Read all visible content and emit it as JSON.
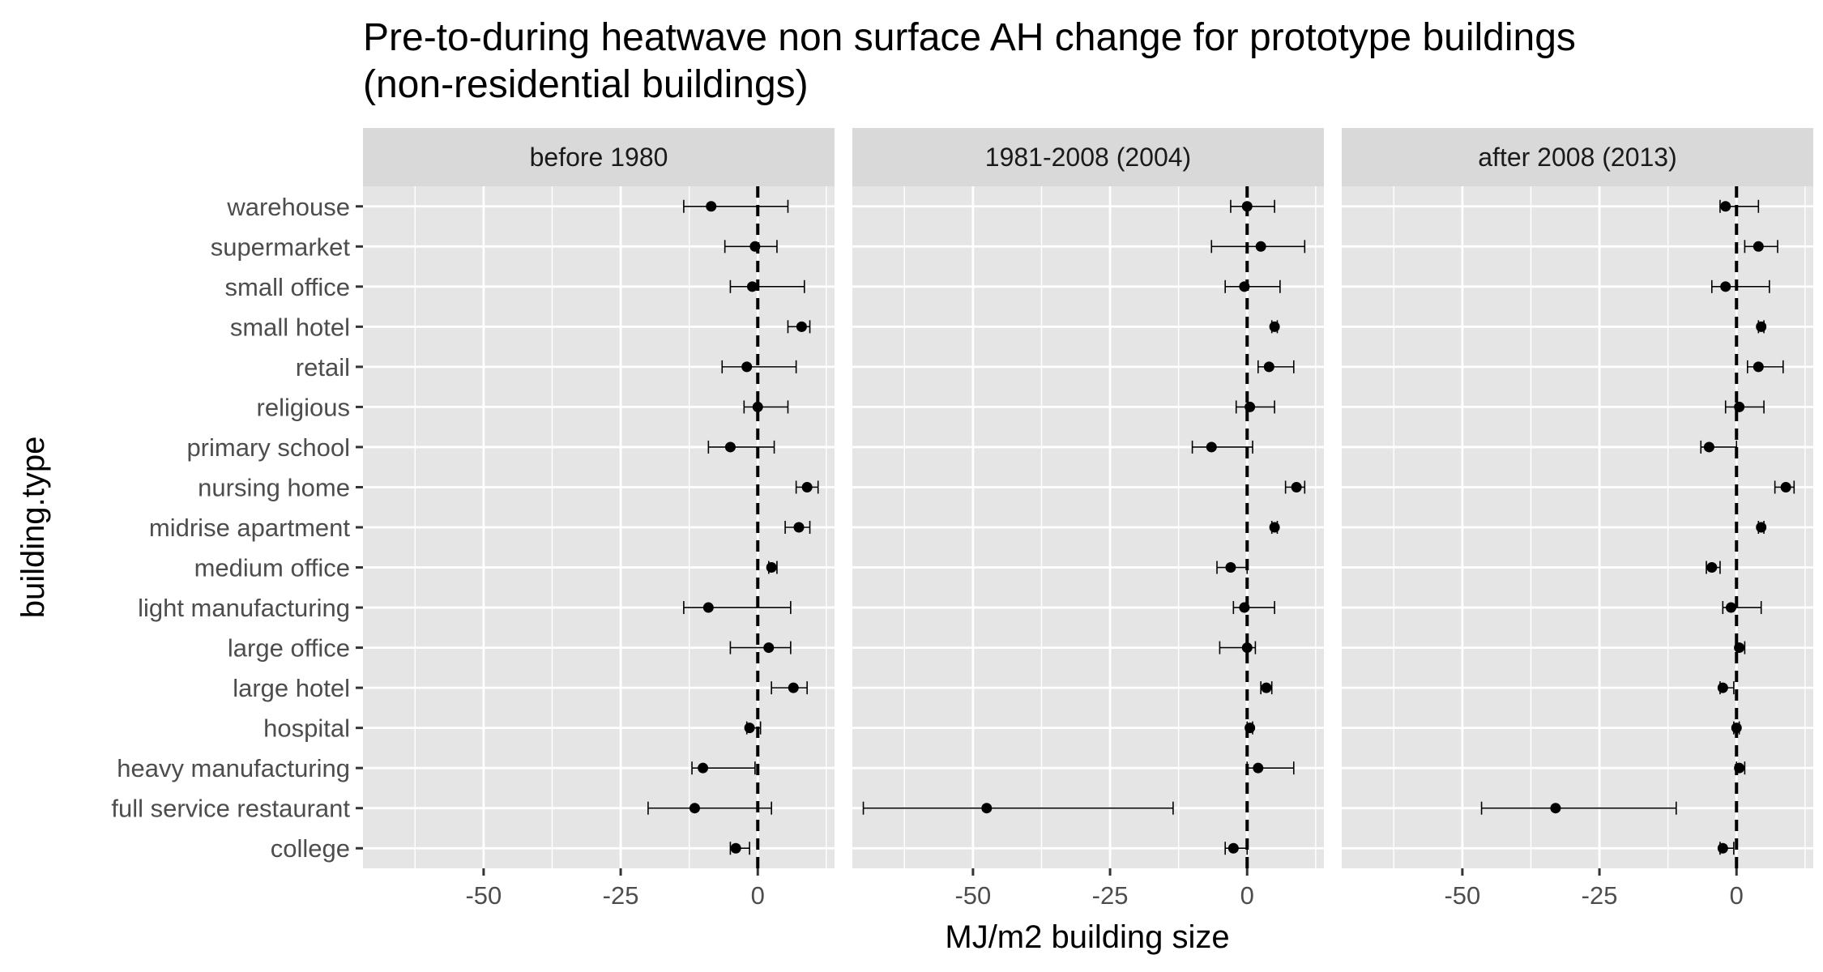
{
  "chart_data": {
    "type": "scatter",
    "subtype": "point-with-horizontal-errorbars, faceted",
    "title": "Pre-to-during heatwave non surface AH change for prototype buildings\n(non-residential buildings)",
    "xlabel": "MJ/m2 building size",
    "ylabel": "building.type",
    "xlim": [
      -72,
      14
    ],
    "x_ticks": [
      -50,
      -25,
      0
    ],
    "x_tick_labels": [
      "-50",
      "-25",
      "0"
    ],
    "reference_line": {
      "x": 0,
      "style": "dashed",
      "color": "#000000"
    },
    "categories": [
      "warehouse",
      "supermarket",
      "small office",
      "small hotel",
      "retail",
      "religious",
      "primary school",
      "nursing home",
      "midrise apartment",
      "medium office",
      "light manufacturing",
      "large office",
      "large hotel",
      "hospital",
      "heavy manufacturing",
      "full service restaurant",
      "college"
    ],
    "colors": {
      "panel_bg": "#e5e5e5",
      "grid": "#ffffff",
      "strip_bg": "#d9d9d9",
      "point": "#000000",
      "tick": "#4d4d4d"
    },
    "grid": true,
    "legend": "none",
    "facets": [
      {
        "label": "before 1980",
        "points": [
          {
            "category": "warehouse",
            "x": -8.5,
            "xmin": -13.5,
            "xmax": 5.5
          },
          {
            "category": "supermarket",
            "x": -0.5,
            "xmin": -6,
            "xmax": 3.5
          },
          {
            "category": "small office",
            "x": -1,
            "xmin": -5,
            "xmax": 8.5
          },
          {
            "category": "small hotel",
            "x": 8,
            "xmin": 5.5,
            "xmax": 9.5
          },
          {
            "category": "retail",
            "x": -2,
            "xmin": -6.5,
            "xmax": 7
          },
          {
            "category": "religious",
            "x": 0,
            "xmin": -2.5,
            "xmax": 5.5
          },
          {
            "category": "primary school",
            "x": -5,
            "xmin": -9,
            "xmax": 3
          },
          {
            "category": "nursing home",
            "x": 9,
            "xmin": 7,
            "xmax": 11
          },
          {
            "category": "midrise apartment",
            "x": 7.5,
            "xmin": 5,
            "xmax": 9.5
          },
          {
            "category": "medium office",
            "x": 2.5,
            "xmin": 2,
            "xmax": 3.5
          },
          {
            "category": "light manufacturing",
            "x": -9,
            "xmin": -13.5,
            "xmax": 6
          },
          {
            "category": "large office",
            "x": 2,
            "xmin": -5,
            "xmax": 6
          },
          {
            "category": "large hotel",
            "x": 6.5,
            "xmin": 2.5,
            "xmax": 9
          },
          {
            "category": "hospital",
            "x": -1.5,
            "xmin": -2,
            "xmax": 0.5
          },
          {
            "category": "heavy manufacturing",
            "x": -10,
            "xmin": -12,
            "xmax": -0.5
          },
          {
            "category": "full service restaurant",
            "x": -11.5,
            "xmin": -20,
            "xmax": 2.5
          },
          {
            "category": "college",
            "x": -4,
            "xmin": -5,
            "xmax": -1.5
          }
        ]
      },
      {
        "label": "1981-2008 (2004)",
        "points": [
          {
            "category": "warehouse",
            "x": 0,
            "xmin": -3,
            "xmax": 5
          },
          {
            "category": "supermarket",
            "x": 2.5,
            "xmin": -6.5,
            "xmax": 10.5
          },
          {
            "category": "small office",
            "x": -0.5,
            "xmin": -4,
            "xmax": 6
          },
          {
            "category": "small hotel",
            "x": 5,
            "xmin": 4.5,
            "xmax": 5.5
          },
          {
            "category": "retail",
            "x": 4,
            "xmin": 2,
            "xmax": 8.5
          },
          {
            "category": "religious",
            "x": 0.5,
            "xmin": -2,
            "xmax": 5
          },
          {
            "category": "primary school",
            "x": -6.5,
            "xmin": -10,
            "xmax": 1
          },
          {
            "category": "nursing home",
            "x": 9,
            "xmin": 7,
            "xmax": 10.5
          },
          {
            "category": "midrise apartment",
            "x": 5,
            "xmin": 4.5,
            "xmax": 5.5
          },
          {
            "category": "medium office",
            "x": -3,
            "xmin": -5.5,
            "xmax": 0
          },
          {
            "category": "light manufacturing",
            "x": -0.5,
            "xmin": -2.5,
            "xmax": 5
          },
          {
            "category": "large office",
            "x": 0,
            "xmin": -5,
            "xmax": 1.5
          },
          {
            "category": "large hotel",
            "x": 3.5,
            "xmin": 2.5,
            "xmax": 4.5
          },
          {
            "category": "hospital",
            "x": 0.5,
            "xmin": 0,
            "xmax": 1
          },
          {
            "category": "heavy manufacturing",
            "x": 2,
            "xmin": 0,
            "xmax": 8.5
          },
          {
            "category": "full service restaurant",
            "x": -47.5,
            "xmin": -70,
            "xmax": -13.5
          },
          {
            "category": "college",
            "x": -2.5,
            "xmin": -4,
            "xmax": 0
          }
        ]
      },
      {
        "label": "after 2008 (2013)",
        "points": [
          {
            "category": "warehouse",
            "x": -2,
            "xmin": -3,
            "xmax": 4
          },
          {
            "category": "supermarket",
            "x": 4,
            "xmin": 1.5,
            "xmax": 7.5
          },
          {
            "category": "small office",
            "x": -2,
            "xmin": -4.5,
            "xmax": 6
          },
          {
            "category": "small hotel",
            "x": 4.5,
            "xmin": 4,
            "xmax": 5
          },
          {
            "category": "retail",
            "x": 4,
            "xmin": 2,
            "xmax": 8.5
          },
          {
            "category": "religious",
            "x": 0.5,
            "xmin": -2,
            "xmax": 5
          },
          {
            "category": "primary school",
            "x": -5,
            "xmin": -6.5,
            "xmax": 0
          },
          {
            "category": "nursing home",
            "x": 9,
            "xmin": 7,
            "xmax": 10.5
          },
          {
            "category": "midrise apartment",
            "x": 4.5,
            "xmin": 4,
            "xmax": 5
          },
          {
            "category": "medium office",
            "x": -4.5,
            "xmin": -5.5,
            "xmax": -3
          },
          {
            "category": "light manufacturing",
            "x": -1,
            "xmin": -2.5,
            "xmax": 4.5
          },
          {
            "category": "large office",
            "x": 0.5,
            "xmin": 0,
            "xmax": 1.5
          },
          {
            "category": "large hotel",
            "x": -2.5,
            "xmin": -3,
            "xmax": -0.5
          },
          {
            "category": "hospital",
            "x": 0,
            "xmin": -0.5,
            "xmax": 0.5
          },
          {
            "category": "heavy manufacturing",
            "x": 0.5,
            "xmin": 0,
            "xmax": 1.5
          },
          {
            "category": "full service restaurant",
            "x": -33,
            "xmin": -46.5,
            "xmax": -11
          },
          {
            "category": "college",
            "x": -2.5,
            "xmin": -3,
            "xmax": -0.5
          }
        ]
      }
    ]
  }
}
